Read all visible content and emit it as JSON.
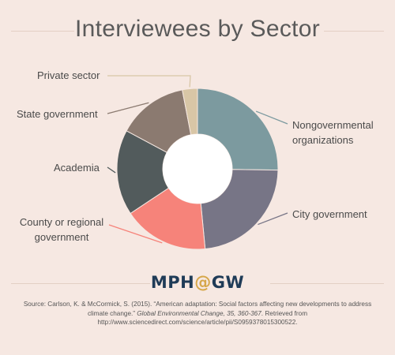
{
  "title": "Interviewees by Sector",
  "chart_data": {
    "type": "pie",
    "donut": true,
    "title": "Interviewees by Sector",
    "categories": [
      "Nongovernmental organizations",
      "City government",
      "County or regional government",
      "Academia",
      "State government",
      "Private sector"
    ],
    "values": [
      25,
      23,
      17,
      17,
      14,
      3
    ],
    "unit": "percent (approximate)",
    "colors": [
      "#7c9a9f",
      "#777586",
      "#f6837a",
      "#525b5c",
      "#8b7a70",
      "#d8c6a6"
    ],
    "legend": "direct labels"
  },
  "labels": {
    "ngo_line1": "Nongovernmental",
    "ngo_line2": "organizations",
    "city": "City government",
    "county_line1": "County or regional",
    "county_line2": "government",
    "academia": "Academia",
    "state": "State government",
    "private": "Private sector"
  },
  "logo": {
    "mph": "MPH",
    "at": "@",
    "gw": "GW"
  },
  "source": {
    "prefix": "Source: Carlson, K. & McCormick, S. (2015). “American adaptation: Social factors affecting new developments to address climate change.” ",
    "journal": "Global Environmental Change, 35, 360-367",
    "suffix": ". Retrieved from http://www.sciencedirect.com/science/article/pii/S0959378015300522."
  }
}
